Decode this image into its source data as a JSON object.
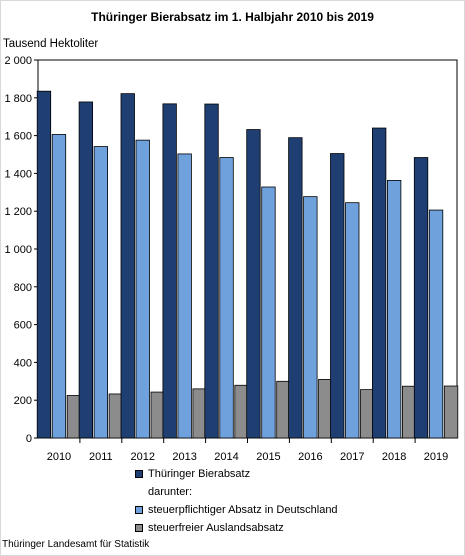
{
  "chart_data": {
    "type": "bar",
    "title": "Thüringer Bierabsatz im 1. Halbjahr 2010 bis 2019",
    "ylabel": "Tausend  Hektoliter",
    "ylim": [
      0,
      2000
    ],
    "yticks": [
      0,
      200,
      400,
      600,
      800,
      1000,
      1200,
      1400,
      1600,
      1800,
      2000
    ],
    "ytick_labels": [
      "0",
      "200",
      "400",
      "600",
      "800",
      "1 000",
      "1 200",
      "1 400",
      "1 600",
      "1 800",
      "2 000"
    ],
    "categories": [
      "2010",
      "2011",
      "2012",
      "2013",
      "2014",
      "2015",
      "2016",
      "2017",
      "2018",
      "2019"
    ],
    "series": [
      {
        "name": "Thüringer Bierabsatz",
        "color": "#1f3f73",
        "values": [
          1835,
          1778,
          1822,
          1768,
          1767,
          1632,
          1589,
          1505,
          1640,
          1484
        ]
      },
      {
        "name": "steuerpflichtiger Absatz in Deutschland",
        "color": "#6fa1dd",
        "values": [
          1606,
          1542,
          1576,
          1503,
          1484,
          1328,
          1277,
          1245,
          1363,
          1206
        ]
      },
      {
        "name": "steuerfreier Auslandsabsatz",
        "color": "#8c8c8c",
        "values": [
          225,
          233,
          243,
          260,
          279,
          300,
          310,
          256,
          274,
          275
        ]
      }
    ],
    "legend_between_label": "darunter:",
    "grid": false,
    "legend_placement": "bottom"
  },
  "source": "Thüringer Landesamt für Statistik"
}
